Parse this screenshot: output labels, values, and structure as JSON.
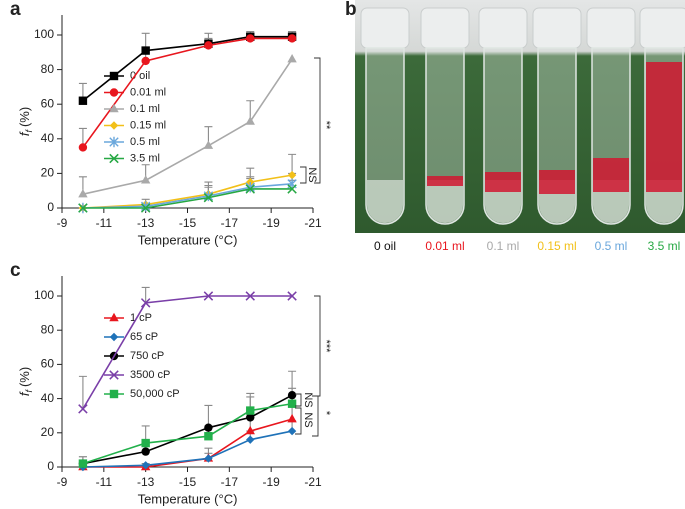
{
  "chart_data": [
    {
      "type": "line",
      "panel_label": "a",
      "xlabel": "Temperature (°C)",
      "ylabel": "f",
      "ylabel_subscript": "f",
      "ylabel_unit": "(%)",
      "x": [
        -10,
        -13,
        -16,
        -18,
        -20
      ],
      "xlim": [
        -9,
        -21
      ],
      "xticks": [
        -9,
        -11,
        -13,
        -15,
        -17,
        -19,
        -21
      ],
      "ylim": [
        0,
        100
      ],
      "yticks": [
        0,
        20,
        40,
        60,
        80,
        100
      ],
      "series": [
        {
          "name": "0 oil",
          "color": "#000000",
          "marker": "square",
          "values": [
            62,
            91,
            95,
            99,
            99
          ],
          "errors": [
            10,
            10,
            6,
            3,
            3
          ]
        },
        {
          "name": "0.01 ml",
          "color": "#e8161e",
          "marker": "circle",
          "values": [
            35,
            85,
            94,
            98,
            98
          ],
          "errors": [
            11,
            8,
            4,
            3,
            4
          ]
        },
        {
          "name": "0.1 ml",
          "color": "#a9a9a9",
          "marker": "triangle",
          "values": [
            8,
            16,
            36,
            50,
            86
          ],
          "errors": [
            10,
            9,
            11,
            12,
            null
          ]
        },
        {
          "name": "0.15 ml",
          "color": "#f2c019",
          "marker": "diamond",
          "values": [
            0,
            2,
            8,
            15,
            19
          ],
          "errors": [
            null,
            3,
            7,
            8,
            12
          ]
        },
        {
          "name": "0.5 ml",
          "color": "#6aa7dc",
          "marker": "asterisk",
          "values": [
            0,
            1,
            7,
            12,
            14
          ],
          "errors": [
            null,
            1,
            6,
            6,
            6
          ]
        },
        {
          "name": "3.5 ml",
          "color": "#27a844",
          "marker": "cross",
          "values": [
            0,
            0,
            6,
            11,
            11
          ],
          "errors": [
            null,
            null,
            6,
            6,
            5
          ]
        }
      ],
      "annotations": [
        "**",
        "NS"
      ]
    },
    {
      "type": "line",
      "panel_label": "c",
      "xlabel": "Temperature (°C)",
      "ylabel": "f",
      "ylabel_subscript": "f",
      "ylabel_unit": "(%)",
      "x": [
        -10,
        -13,
        -16,
        -18,
        -20
      ],
      "xlim": [
        -9,
        -21
      ],
      "xticks": [
        -9,
        -11,
        -13,
        -15,
        -17,
        -19,
        -21
      ],
      "ylim": [
        0,
        100
      ],
      "yticks": [
        0,
        20,
        40,
        60,
        80,
        100
      ],
      "series": [
        {
          "name": "1 cP",
          "color": "#e8161e",
          "marker": "triangle",
          "values": [
            0,
            0,
            5,
            21,
            28
          ],
          "errors": [
            null,
            null,
            6,
            8,
            8
          ]
        },
        {
          "name": "65 cP",
          "color": "#1f72b8",
          "marker": "diamond",
          "values": [
            0,
            1,
            5,
            16,
            21
          ],
          "errors": [
            null,
            1,
            3,
            5,
            6
          ]
        },
        {
          "name": "750 cP",
          "color": "#000000",
          "marker": "circle",
          "values": [
            2,
            9,
            23,
            29,
            42
          ],
          "errors": [
            4,
            6,
            13,
            14,
            14
          ]
        },
        {
          "name": "3500 cP",
          "color": "#7a3fa8",
          "marker": "cross",
          "values": [
            34,
            96,
            100,
            100,
            100
          ],
          "errors": [
            19,
            9,
            null,
            null,
            null
          ]
        },
        {
          "name": "50,000 cP",
          "color": "#22b04b",
          "marker": "square",
          "values": [
            2,
            14,
            18,
            33,
            37
          ],
          "errors": [
            4,
            10,
            6,
            8,
            9
          ]
        }
      ],
      "annotations": [
        "***",
        "NS",
        "NS",
        "*"
      ]
    }
  ],
  "photo": {
    "panel_label": "b",
    "samples": [
      {
        "label": "0 oil",
        "color": "#111111"
      },
      {
        "label": "0.01 ml",
        "color": "#e8161e"
      },
      {
        "label": "0.1 ml",
        "color": "#a9a9a9"
      },
      {
        "label": "0.15 ml",
        "color": "#f2c019"
      },
      {
        "label": "0.5 ml",
        "color": "#6aa7dc"
      },
      {
        "label": "3.5 ml",
        "color": "#27a844"
      }
    ]
  }
}
